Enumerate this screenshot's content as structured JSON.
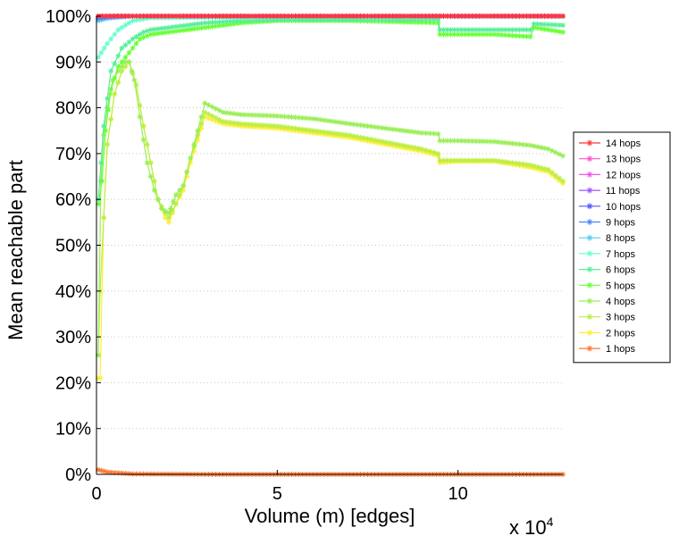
{
  "chart_data": {
    "type": "line",
    "title": "",
    "xlabel": "Volume (m) [edges]",
    "ylabel": "Mean reachable part",
    "x_multiplier": "x 10",
    "x_multiplier_exp": "4",
    "xlim": [
      0,
      12.9
    ],
    "ylim": [
      0,
      100
    ],
    "x_ticks": [
      0,
      5,
      10
    ],
    "x_tick_labels": [
      "0",
      "5",
      "10"
    ],
    "y_ticks": [
      0,
      10,
      20,
      30,
      40,
      50,
      60,
      70,
      80,
      90,
      100
    ],
    "y_tick_labels": [
      "0%",
      "10%",
      "20%",
      "30%",
      "40%",
      "50%",
      "60%",
      "70%",
      "80%",
      "90%",
      "100%"
    ],
    "grid": true,
    "legend_position": "right",
    "marker": "asterisk",
    "series": [
      {
        "name": "14 hops",
        "color": "#ff3333",
        "points": [
          [
            0.05,
            100
          ],
          [
            1,
            100
          ],
          [
            5,
            100
          ],
          [
            10,
            100
          ],
          [
            12.9,
            100
          ]
        ]
      },
      {
        "name": "13 hops",
        "color": "#ff55cc",
        "points": [
          [
            0.05,
            100
          ],
          [
            1,
            100
          ],
          [
            5,
            100
          ],
          [
            10,
            100
          ],
          [
            12.9,
            100
          ]
        ]
      },
      {
        "name": "12 hops",
        "color": "#ee55ee",
        "points": [
          [
            0.05,
            100
          ],
          [
            1,
            100
          ],
          [
            5,
            100
          ],
          [
            10,
            100
          ],
          [
            12.9,
            100
          ]
        ]
      },
      {
        "name": "11 hops",
        "color": "#9955ff",
        "points": [
          [
            0.05,
            100
          ],
          [
            1,
            100
          ],
          [
            5,
            100
          ],
          [
            10,
            100
          ],
          [
            12.9,
            100
          ]
        ]
      },
      {
        "name": "10 hops",
        "color": "#5555ff",
        "points": [
          [
            0.05,
            100
          ],
          [
            1,
            100
          ],
          [
            5,
            100
          ],
          [
            10,
            100
          ],
          [
            12.9,
            100
          ]
        ]
      },
      {
        "name": "9 hops",
        "color": "#4488ff",
        "points": [
          [
            0.05,
            99.5
          ],
          [
            0.5,
            99.9
          ],
          [
            1,
            100
          ],
          [
            5,
            100
          ],
          [
            10,
            100
          ],
          [
            12.9,
            100
          ]
        ]
      },
      {
        "name": "8 hops",
        "color": "#55ccee",
        "points": [
          [
            0.05,
            99
          ],
          [
            0.3,
            99.5
          ],
          [
            1,
            100
          ],
          [
            5,
            100
          ],
          [
            10,
            100
          ],
          [
            12.9,
            100
          ]
        ]
      },
      {
        "name": "7 hops",
        "color": "#66ffcc",
        "points": [
          [
            0.05,
            91
          ],
          [
            0.3,
            94
          ],
          [
            0.6,
            97
          ],
          [
            1,
            99
          ],
          [
            1.5,
            99.6
          ],
          [
            5,
            99.8
          ],
          [
            10,
            99.9
          ],
          [
            12.9,
            99.9
          ]
        ]
      },
      {
        "name": "6 hops",
        "color": "#55ee99",
        "points": [
          [
            0.05,
            60
          ],
          [
            0.2,
            76
          ],
          [
            0.4,
            88
          ],
          [
            0.7,
            93
          ],
          [
            1,
            95
          ],
          [
            1.3,
            96.5
          ],
          [
            1.5,
            97
          ],
          [
            2,
            97.5
          ],
          [
            3,
            98.5
          ],
          [
            4,
            99
          ],
          [
            5,
            99.2
          ],
          [
            7,
            99.2
          ],
          [
            9,
            99.2
          ],
          [
            9.45,
            99.2
          ],
          [
            9.5,
            97
          ],
          [
            11,
            97
          ],
          [
            12,
            97
          ],
          [
            12.1,
            98.3
          ],
          [
            12.9,
            98
          ]
        ]
      },
      {
        "name": "5 hops",
        "color": "#66ff33",
        "points": [
          [
            0.05,
            59
          ],
          [
            0.15,
            64
          ],
          [
            0.25,
            75
          ],
          [
            0.4,
            84
          ],
          [
            0.6,
            89
          ],
          [
            0.8,
            91
          ],
          [
            1,
            93
          ],
          [
            1.2,
            95
          ],
          [
            1.5,
            96
          ],
          [
            2,
            96.5
          ],
          [
            2.5,
            97
          ],
          [
            3,
            97.5
          ],
          [
            4,
            98.5
          ],
          [
            5,
            99
          ],
          [
            7,
            99
          ],
          [
            9,
            98.6
          ],
          [
            9.45,
            98.5
          ],
          [
            9.5,
            96
          ],
          [
            11,
            96
          ],
          [
            12,
            95.5
          ],
          [
            12.1,
            97.5
          ],
          [
            12.9,
            96.5
          ]
        ]
      },
      {
        "name": "4 hops",
        "color": "#99ee55",
        "points": [
          [
            0.05,
            26
          ],
          [
            0.12,
            64
          ],
          [
            0.2,
            74
          ],
          [
            0.3,
            80
          ],
          [
            0.45,
            86
          ],
          [
            0.6,
            88
          ],
          [
            0.8,
            90
          ],
          [
            0.9,
            90
          ],
          [
            1.05,
            86
          ],
          [
            1.2,
            78
          ],
          [
            1.4,
            68
          ],
          [
            1.6,
            62
          ],
          [
            1.8,
            58
          ],
          [
            2,
            57
          ],
          [
            2.05,
            58
          ],
          [
            2.2,
            61
          ],
          [
            2.4,
            63
          ],
          [
            2.6,
            69
          ],
          [
            2.8,
            75
          ],
          [
            3,
            81
          ],
          [
            3.5,
            79
          ],
          [
            4,
            78.5
          ],
          [
            5,
            78.2
          ],
          [
            6,
            77.6
          ],
          [
            7,
            76.5
          ],
          [
            8,
            75.5
          ],
          [
            9,
            74.5
          ],
          [
            9.45,
            74.3
          ],
          [
            9.5,
            72.8
          ],
          [
            10,
            72.8
          ],
          [
            11,
            72.6
          ],
          [
            12,
            71.8
          ],
          [
            12.5,
            71
          ],
          [
            12.9,
            69.5
          ]
        ]
      },
      {
        "name": "3 hops",
        "color": "#bbee44",
        "points": [
          [
            0.05,
            26
          ],
          [
            0.1,
            40
          ],
          [
            0.2,
            56
          ],
          [
            0.3,
            72
          ],
          [
            0.5,
            83
          ],
          [
            0.7,
            88
          ],
          [
            0.9,
            90
          ],
          [
            1.1,
            85
          ],
          [
            1.3,
            76
          ],
          [
            1.5,
            68
          ],
          [
            1.7,
            60
          ],
          [
            1.9,
            57
          ],
          [
            2,
            56
          ],
          [
            2.2,
            59
          ],
          [
            2.4,
            63
          ],
          [
            2.6,
            69
          ],
          [
            2.8,
            74
          ],
          [
            3,
            79
          ],
          [
            3.5,
            77
          ],
          [
            4,
            76.5
          ],
          [
            5,
            76
          ],
          [
            6,
            75
          ],
          [
            7,
            74
          ],
          [
            8,
            72.5
          ],
          [
            9,
            71
          ],
          [
            9.45,
            70
          ],
          [
            9.5,
            68.5
          ],
          [
            10,
            68.5
          ],
          [
            11,
            68.5
          ],
          [
            12,
            67.5
          ],
          [
            12.5,
            66.5
          ],
          [
            12.9,
            64
          ]
        ]
      },
      {
        "name": "2 hops",
        "color": "#ffee33",
        "points": [
          [
            0.05,
            21
          ],
          [
            0.1,
            21
          ],
          [
            0.2,
            56
          ],
          [
            0.3,
            72
          ],
          [
            0.5,
            83
          ],
          [
            0.7,
            88
          ],
          [
            0.9,
            90
          ],
          [
            1.1,
            85
          ],
          [
            1.3,
            76
          ],
          [
            1.5,
            68
          ],
          [
            1.7,
            60
          ],
          [
            1.9,
            56
          ],
          [
            2,
            55
          ],
          [
            2.2,
            59
          ],
          [
            2.4,
            62
          ],
          [
            2.6,
            68
          ],
          [
            2.8,
            73
          ],
          [
            3,
            78
          ],
          [
            3.5,
            76.5
          ],
          [
            4,
            76
          ],
          [
            5,
            75.5
          ],
          [
            6,
            74.5
          ],
          [
            7,
            73.5
          ],
          [
            8,
            72
          ],
          [
            9,
            70.5
          ],
          [
            9.45,
            69.5
          ],
          [
            9.5,
            68
          ],
          [
            10,
            68.3
          ],
          [
            11,
            68.3
          ],
          [
            12,
            67
          ],
          [
            12.5,
            66
          ],
          [
            12.9,
            63.5
          ]
        ]
      },
      {
        "name": "1 hops",
        "color": "#ff7733",
        "points": [
          [
            0.05,
            1
          ],
          [
            0.3,
            0.5
          ],
          [
            1,
            0.1
          ],
          [
            3,
            0
          ],
          [
            5,
            0
          ],
          [
            10,
            0
          ],
          [
            12.9,
            0
          ]
        ]
      }
    ]
  }
}
